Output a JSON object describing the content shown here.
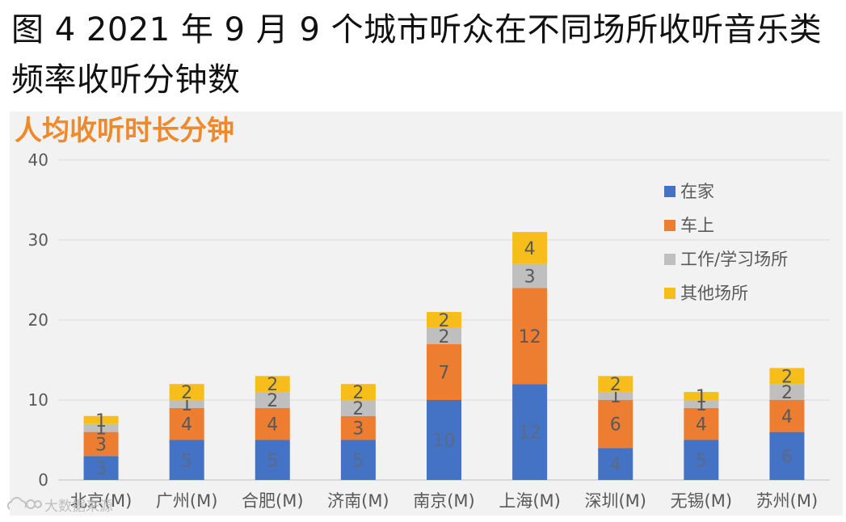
{
  "page_title": "图 4 2021 年 9 月 9 个城市听众在不同场所收听音乐类频率收听分钟数",
  "chart_data": {
    "type": "bar",
    "stacked": true,
    "title": "人均收听时长分钟",
    "ylim": [
      0,
      40
    ],
    "yticks": [
      0,
      10,
      20,
      30,
      40
    ],
    "grid": true,
    "legend_position": "top-right",
    "categories": [
      "北京(M)",
      "广州(M)",
      "合肥(M)",
      "济南(M)",
      "南京(M)",
      "上海(M)",
      "深圳(M)",
      "无锡(M)",
      "苏州(M)"
    ],
    "series": [
      {
        "name": "在家",
        "color": "#4472c4",
        "label_color": "#5a6a85",
        "values": [
          3,
          5,
          5,
          5,
          10,
          12,
          4,
          5,
          6
        ]
      },
      {
        "name": "车上",
        "color": "#ed7d31",
        "label_color": "#595959",
        "values": [
          3,
          4,
          4,
          3,
          7,
          12,
          6,
          4,
          4
        ]
      },
      {
        "name": "工作/学习场所",
        "color": "#bfbfbf",
        "label_color": "#595959",
        "values": [
          1,
          1,
          2,
          2,
          2,
          3,
          1,
          1,
          2
        ]
      },
      {
        "name": "其他场所",
        "color": "#f7be1b",
        "label_color": "#595959",
        "values": [
          1,
          2,
          2,
          2,
          2,
          4,
          2,
          1,
          2
        ]
      }
    ]
  },
  "watermark": {
    "text": "大数据来源",
    "icon": "cloud-logo-icon"
  }
}
